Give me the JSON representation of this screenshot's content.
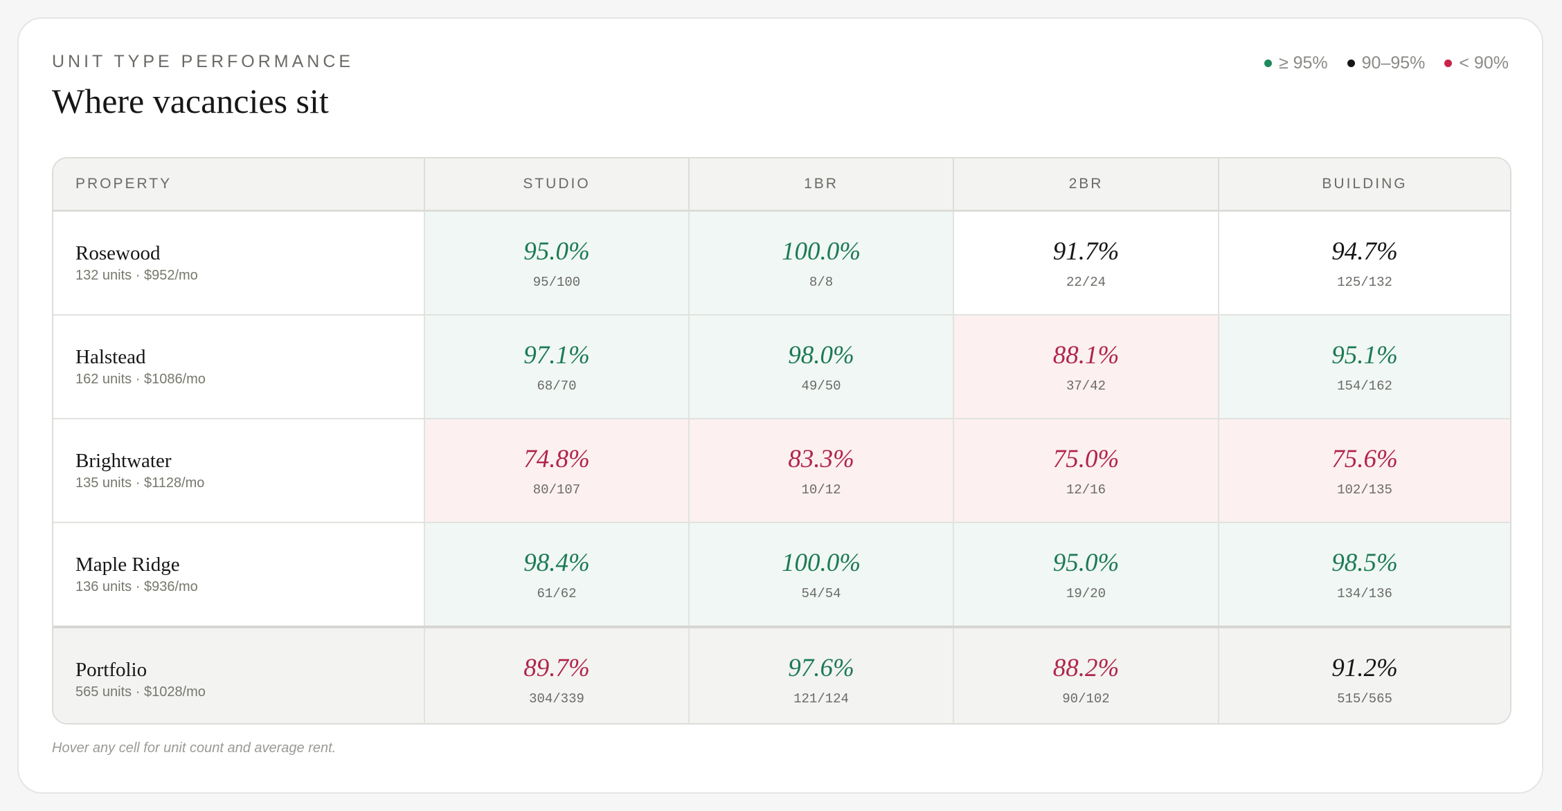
{
  "header": {
    "eyebrow": "UNIT TYPE PERFORMANCE",
    "title": "Where vacancies sit"
  },
  "legend": [
    {
      "label": "≥ 95%",
      "color": "#1c8a5e"
    },
    {
      "label": "90–95%",
      "color": "#161616"
    },
    {
      "label": "< 90%",
      "color": "#c8234a"
    }
  ],
  "table": {
    "columns": [
      "PROPERTY",
      "STUDIO",
      "1BR",
      "2BR",
      "BUILDING"
    ],
    "rows": [
      {
        "name": "Rosewood",
        "meta": "132 units · $952/mo",
        "cells": [
          {
            "pct": "95.0%",
            "frac": "95/100",
            "status": "good"
          },
          {
            "pct": "100.0%",
            "frac": "8/8",
            "status": "good"
          },
          {
            "pct": "91.7%",
            "frac": "22/24",
            "status": "mid"
          },
          {
            "pct": "94.7%",
            "frac": "125/132",
            "status": "mid"
          }
        ]
      },
      {
        "name": "Halstead",
        "meta": "162 units · $1086/mo",
        "cells": [
          {
            "pct": "97.1%",
            "frac": "68/70",
            "status": "good"
          },
          {
            "pct": "98.0%",
            "frac": "49/50",
            "status": "good"
          },
          {
            "pct": "88.1%",
            "frac": "37/42",
            "status": "bad"
          },
          {
            "pct": "95.1%",
            "frac": "154/162",
            "status": "good"
          }
        ]
      },
      {
        "name": "Brightwater",
        "meta": "135 units · $1128/mo",
        "cells": [
          {
            "pct": "74.8%",
            "frac": "80/107",
            "status": "bad"
          },
          {
            "pct": "83.3%",
            "frac": "10/12",
            "status": "bad"
          },
          {
            "pct": "75.0%",
            "frac": "12/16",
            "status": "bad"
          },
          {
            "pct": "75.6%",
            "frac": "102/135",
            "status": "bad"
          }
        ]
      },
      {
        "name": "Maple Ridge",
        "meta": "136 units · $936/mo",
        "cells": [
          {
            "pct": "98.4%",
            "frac": "61/62",
            "status": "good"
          },
          {
            "pct": "100.0%",
            "frac": "54/54",
            "status": "good"
          },
          {
            "pct": "95.0%",
            "frac": "19/20",
            "status": "good"
          },
          {
            "pct": "98.5%",
            "frac": "134/136",
            "status": "good"
          }
        ]
      }
    ],
    "portfolio": {
      "name": "Portfolio",
      "meta": "565 units · $1028/mo",
      "cells": [
        {
          "pct": "89.7%",
          "frac": "304/339",
          "status": "bad"
        },
        {
          "pct": "97.6%",
          "frac": "121/124",
          "status": "good"
        },
        {
          "pct": "88.2%",
          "frac": "90/102",
          "status": "bad"
        },
        {
          "pct": "91.2%",
          "frac": "515/565",
          "status": "mid"
        }
      ]
    }
  },
  "footnote": "Hover any cell for unit count and average rent."
}
